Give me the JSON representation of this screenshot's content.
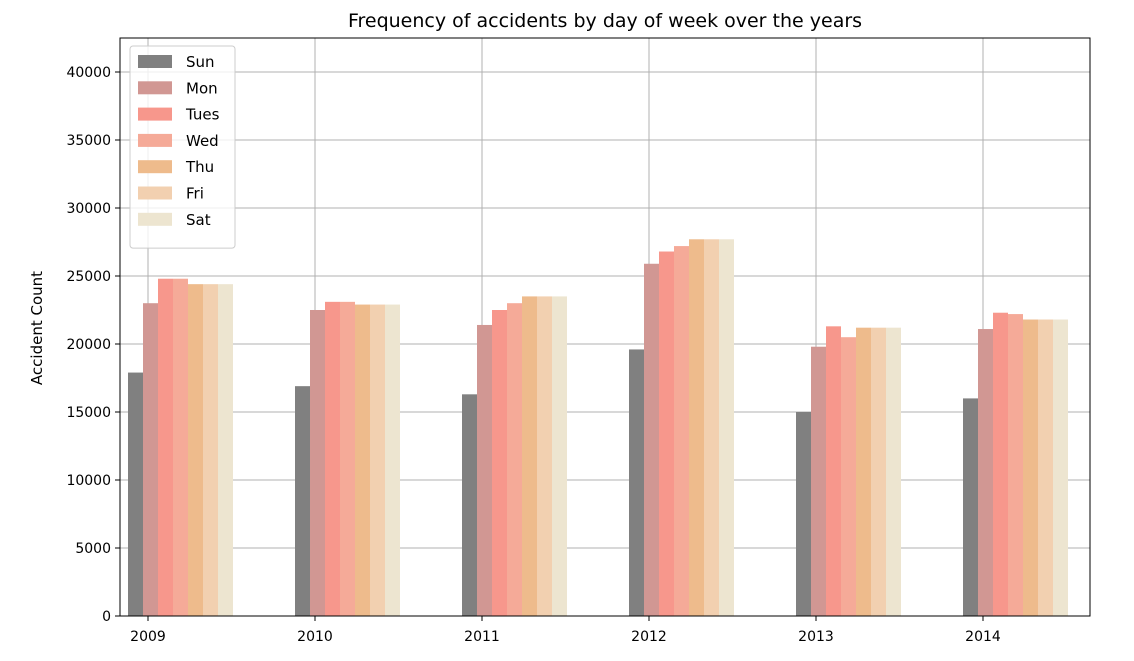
{
  "chart_data": {
    "type": "bar",
    "title": "Frequency of accidents by day of week over the years",
    "xlabel": "",
    "ylabel": "Accident Count",
    "categories": [
      "2009",
      "2010",
      "2011",
      "2012",
      "2013",
      "2014"
    ],
    "ylim": [
      0,
      42500
    ],
    "yticks": [
      0,
      5000,
      10000,
      15000,
      20000,
      25000,
      30000,
      35000,
      40000
    ],
    "ytick_labels": [
      "0",
      "5000",
      "10000",
      "15000",
      "20000",
      "25000",
      "30000",
      "35000",
      "40000"
    ],
    "grid": true,
    "legend_position": "top-left",
    "series": [
      {
        "name": "Sun",
        "color": "#808080",
        "values": [
          17900,
          16900,
          16300,
          19600,
          15000,
          16000
        ]
      },
      {
        "name": "Mon",
        "color": "#d19793",
        "values": [
          23000,
          22500,
          21400,
          25900,
          19800,
          21100
        ]
      },
      {
        "name": "Tues",
        "color": "#f7978c",
        "values": [
          24800,
          23100,
          22500,
          26800,
          21300,
          22300
        ]
      },
      {
        "name": "Wed",
        "color": "#f5aa98",
        "values": [
          24800,
          23100,
          23000,
          27200,
          20500,
          22200
        ]
      },
      {
        "name": "Thu",
        "color": "#eebb8c",
        "values": [
          24400,
          22900,
          23500,
          27700,
          21200,
          21800
        ]
      },
      {
        "name": "Fri",
        "color": "#f2d0b0",
        "values": [
          24400,
          22900,
          23500,
          27700,
          21200,
          21800
        ]
      },
      {
        "name": "Sat",
        "color": "#ede5d0",
        "values": [
          24400,
          22900,
          23500,
          27700,
          21200,
          21800
        ]
      }
    ]
  }
}
